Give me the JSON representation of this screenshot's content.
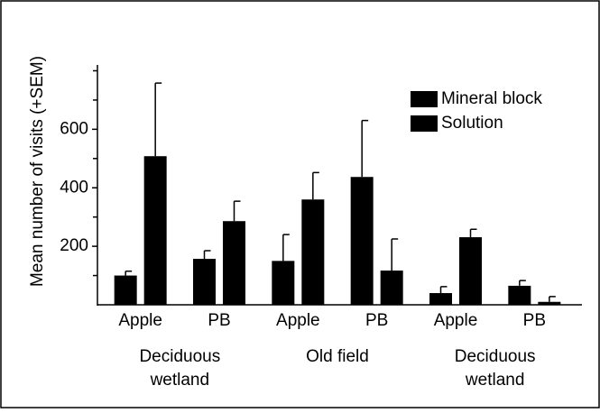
{
  "chart_data": {
    "type": "bar",
    "y_label": "Mean number of visits (+SEM)",
    "categories": [
      "Apple",
      "PB",
      "Apple",
      "PB",
      "Apple",
      "PB"
    ],
    "groups": [
      {
        "lines": [
          "Deciduous",
          "wetland"
        ]
      },
      {
        "lines": [
          "Old field"
        ]
      },
      {
        "lines": [
          "Deciduous",
          "wetland"
        ]
      }
    ],
    "series": [
      {
        "name": "Mineral block",
        "color": "#000000",
        "values": [
          100,
          157,
          150,
          437,
          40,
          65
        ],
        "errors": [
          15,
          28,
          90,
          193,
          22,
          18
        ]
      },
      {
        "name": "Solution",
        "color": "#000000",
        "values": [
          508,
          286,
          360,
          117,
          231,
          10
        ],
        "errors": [
          250,
          68,
          92,
          108,
          27,
          18
        ]
      }
    ],
    "ylim": [
      0,
      820
    ],
    "yticks": [
      200,
      400,
      600
    ],
    "yminorticks": [
      100,
      300,
      500,
      700,
      800
    ],
    "legend": "top-right"
  }
}
